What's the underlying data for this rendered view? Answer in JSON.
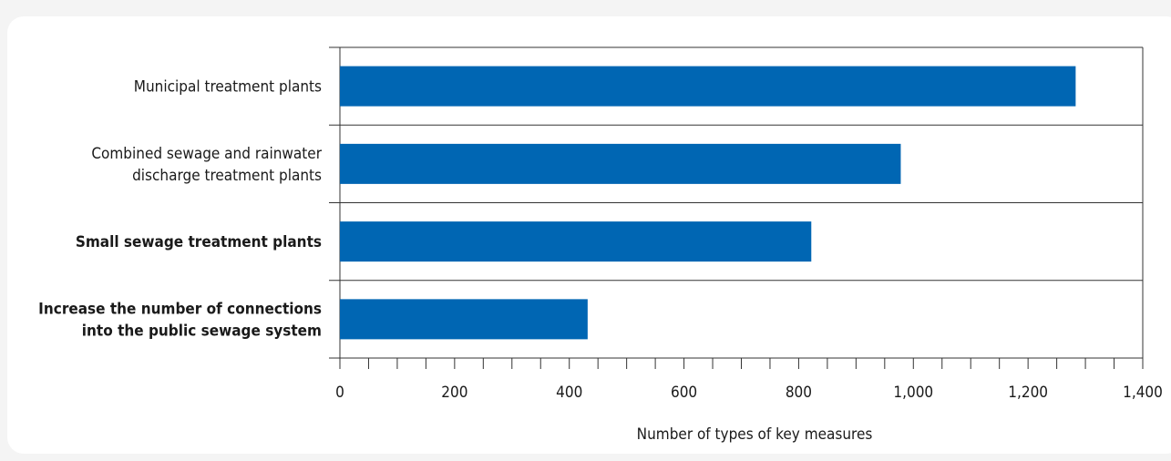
{
  "chart_data": {
    "type": "bar",
    "orientation": "horizontal",
    "categories": [
      [
        "Municipal treatment plants"
      ],
      [
        "Combined sewage and rainwater",
        "discharge treatment plants"
      ],
      [
        "Small sewage treatment plants"
      ],
      [
        "Increase the number of connections",
        "into the public sewage system"
      ]
    ],
    "category_bold": [
      false,
      false,
      true,
      true
    ],
    "values": [
      1283,
      978,
      822,
      432
    ],
    "xlim": [
      0,
      1400
    ],
    "xticks": [
      0,
      200,
      400,
      600,
      800,
      1000,
      1200,
      1400
    ],
    "xtick_labels": [
      "0",
      "200",
      "400",
      "600",
      "800",
      "1,000",
      "1,200",
      "1,400"
    ],
    "xlabel": "Number of types of key measures",
    "ylabel": "",
    "title": "",
    "bar_color": "#0066b3",
    "grid": "horizontal separators between categories",
    "legend": "none"
  }
}
